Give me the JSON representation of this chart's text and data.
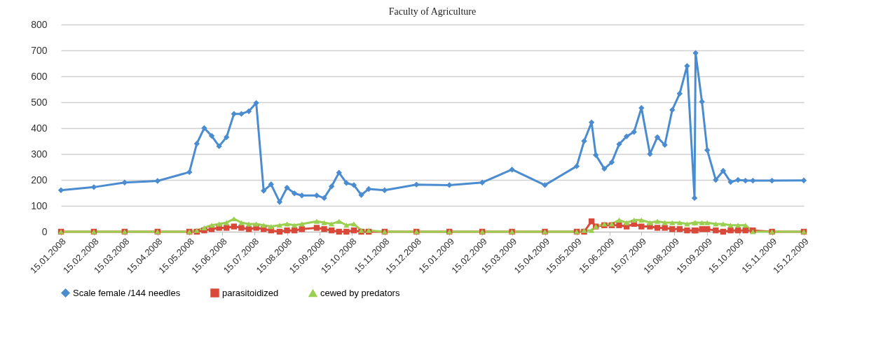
{
  "chart_data": {
    "type": "line",
    "title": "Faculty of Agriculture",
    "x": [
      "2008-01-15",
      "2008-02-15",
      "2008-03-15",
      "2008-04-15",
      "2008-05-15",
      "2008-05-22",
      "2008-05-29",
      "2008-06-05",
      "2008-06-12",
      "2008-06-19",
      "2008-06-26",
      "2008-07-03",
      "2008-07-10",
      "2008-07-17",
      "2008-07-24",
      "2008-07-31",
      "2008-08-08",
      "2008-08-15",
      "2008-08-22",
      "2008-08-29",
      "2008-09-12",
      "2008-09-19",
      "2008-09-26",
      "2008-10-03",
      "2008-10-10",
      "2008-10-17",
      "2008-10-24",
      "2008-10-31",
      "2008-11-15",
      "2008-12-15",
      "2009-01-15",
      "2009-02-15",
      "2009-03-15",
      "2009-04-15",
      "2009-05-15",
      "2009-05-22",
      "2009-05-29",
      "2009-06-02",
      "2009-06-10",
      "2009-06-17",
      "2009-06-24",
      "2009-07-01",
      "2009-07-08",
      "2009-07-15",
      "2009-07-23",
      "2009-07-30",
      "2009-08-06",
      "2009-08-13",
      "2009-08-20",
      "2009-08-27",
      "2009-09-03",
      "2009-09-04",
      "2009-09-10",
      "2009-09-15",
      "2009-09-23",
      "2009-09-30",
      "2009-10-07",
      "2009-10-14",
      "2009-10-21",
      "2009-10-28",
      "2009-11-15",
      "2009-12-15"
    ],
    "series": [
      {
        "name": "Scale female /144 needles",
        "color": "#4a8ccf",
        "marker": "diamond",
        "values": [
          160,
          172,
          190,
          196,
          230,
          340,
          400,
          370,
          330,
          365,
          455,
          455,
          465,
          497,
          158,
          183,
          115,
          170,
          148,
          140,
          140,
          130,
          175,
          228,
          188,
          180,
          142,
          165,
          160,
          182,
          180,
          190,
          240,
          180,
          253,
          350,
          422,
          296,
          243,
          268,
          338,
          368,
          385,
          478,
          300,
          365,
          335,
          470,
          533,
          640,
          130,
          690,
          502,
          315,
          200,
          235,
          192,
          200,
          197,
          197,
          197,
          198
        ]
      },
      {
        "name": "parasitoidized",
        "color": "#d9493a",
        "marker": "square",
        "values": [
          0,
          0,
          0,
          0,
          0,
          0,
          5,
          10,
          15,
          15,
          20,
          15,
          10,
          15,
          10,
          5,
          0,
          5,
          5,
          10,
          15,
          10,
          5,
          0,
          0,
          5,
          0,
          0,
          0,
          0,
          0,
          0,
          0,
          0,
          0,
          0,
          40,
          20,
          25,
          25,
          25,
          20,
          30,
          20,
          20,
          15,
          15,
          10,
          10,
          5,
          5,
          5,
          10,
          10,
          5,
          0,
          5,
          5,
          5,
          5,
          0,
          0
        ]
      },
      {
        "name": "cewed by predators",
        "color": "#9bcf52",
        "marker": "triangle",
        "values": [
          0,
          0,
          0,
          0,
          0,
          5,
          15,
          25,
          30,
          35,
          50,
          35,
          30,
          30,
          25,
          20,
          25,
          30,
          25,
          30,
          40,
          35,
          30,
          40,
          25,
          30,
          5,
          5,
          0,
          0,
          0,
          0,
          0,
          0,
          0,
          5,
          5,
          20,
          30,
          30,
          45,
          35,
          45,
          45,
          35,
          40,
          35,
          35,
          35,
          30,
          35,
          35,
          35,
          35,
          30,
          30,
          25,
          25,
          25,
          0,
          0,
          0
        ]
      }
    ],
    "xlim": [
      "2008-01-15",
      "2009-12-15"
    ],
    "xticks": [
      {
        "value": "2008-01-15",
        "label": "15.01.2008"
      },
      {
        "value": "2008-02-15",
        "label": "15.02.2008"
      },
      {
        "value": "2008-03-15",
        "label": "15.03.2008"
      },
      {
        "value": "2008-04-15",
        "label": "15.04.2008"
      },
      {
        "value": "2008-05-15",
        "label": "15.05.2008"
      },
      {
        "value": "2008-06-15",
        "label": "15.06.2008"
      },
      {
        "value": "2008-07-15",
        "label": "15.07.2008"
      },
      {
        "value": "2008-08-15",
        "label": "15.08.2008"
      },
      {
        "value": "2008-09-15",
        "label": "15.09.2008"
      },
      {
        "value": "2008-10-15",
        "label": "15.10.2008"
      },
      {
        "value": "2008-11-15",
        "label": "15.11.2008"
      },
      {
        "value": "2008-12-15",
        "label": "15.12.2008"
      },
      {
        "value": "2009-01-15",
        "label": "15.01.2009"
      },
      {
        "value": "2009-02-15",
        "label": "15.02.2009"
      },
      {
        "value": "2009-03-15",
        "label": "15.03.2009"
      },
      {
        "value": "2009-04-15",
        "label": "15.04.2009"
      },
      {
        "value": "2009-05-15",
        "label": "15.05.2009"
      },
      {
        "value": "2009-06-15",
        "label": "15.06.2009"
      },
      {
        "value": "2009-07-15",
        "label": "15.07.2009"
      },
      {
        "value": "2009-08-15",
        "label": "15.08.2009"
      },
      {
        "value": "2009-09-15",
        "label": "15.09.2009"
      },
      {
        "value": "2009-10-15",
        "label": "15.10.2009"
      },
      {
        "value": "2009-11-15",
        "label": "15.11.2009"
      },
      {
        "value": "2009-12-15",
        "label": "15.12.2009"
      }
    ],
    "ylim": [
      0,
      800
    ],
    "yticks": [
      0,
      100,
      200,
      300,
      400,
      500,
      600,
      700,
      800
    ],
    "grid": "y",
    "legend": "bottom"
  }
}
